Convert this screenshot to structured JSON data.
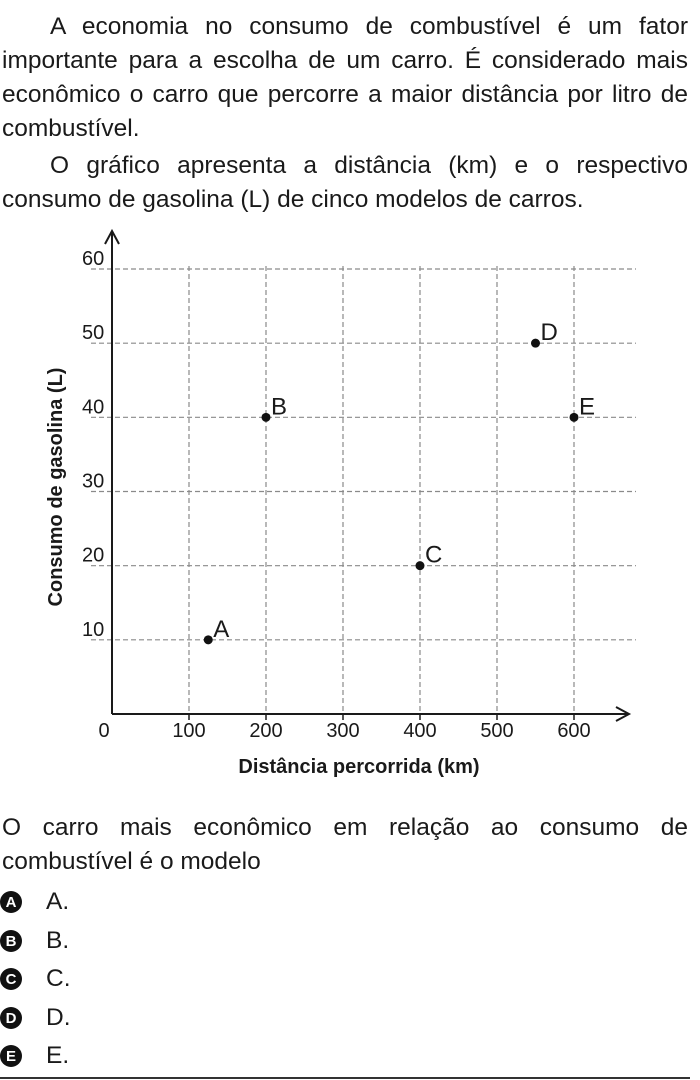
{
  "intro": {
    "paragraph1": "A economia no consumo de combustível é um fator importante para a escolha de um carro. É considerado mais econômico o carro que percorre a maior distância por litro de combustível.",
    "paragraph2": "O gráfico apresenta a distância (km) e o respectivo consumo de gasolina (L) de cinco modelos de carros."
  },
  "chart_data": {
    "type": "scatter",
    "xlabel": "Distância percorrida (km)",
    "ylabel": "Consumo de gasolina (L)",
    "xlim": [
      0,
      600
    ],
    "ylim": [
      0,
      60
    ],
    "x_ticks": [
      "0",
      "100",
      "200",
      "300",
      "400",
      "500",
      "600"
    ],
    "y_ticks": [
      "10",
      "20",
      "30",
      "40",
      "50",
      "60"
    ],
    "grid": true,
    "points": [
      {
        "label": "A",
        "x": 125,
        "y": 10
      },
      {
        "label": "B",
        "x": 200,
        "y": 40
      },
      {
        "label": "C",
        "x": 400,
        "y": 20
      },
      {
        "label": "D",
        "x": 550,
        "y": 50
      },
      {
        "label": "E",
        "x": 600,
        "y": 40
      }
    ]
  },
  "question": {
    "stem": "O carro mais econômico em relação ao consumo de combustível é o modelo",
    "options": [
      {
        "letter": "A",
        "text": "A."
      },
      {
        "letter": "B",
        "text": "B."
      },
      {
        "letter": "C",
        "text": "C."
      },
      {
        "letter": "D",
        "text": "D."
      },
      {
        "letter": "E",
        "text": "E."
      }
    ]
  }
}
